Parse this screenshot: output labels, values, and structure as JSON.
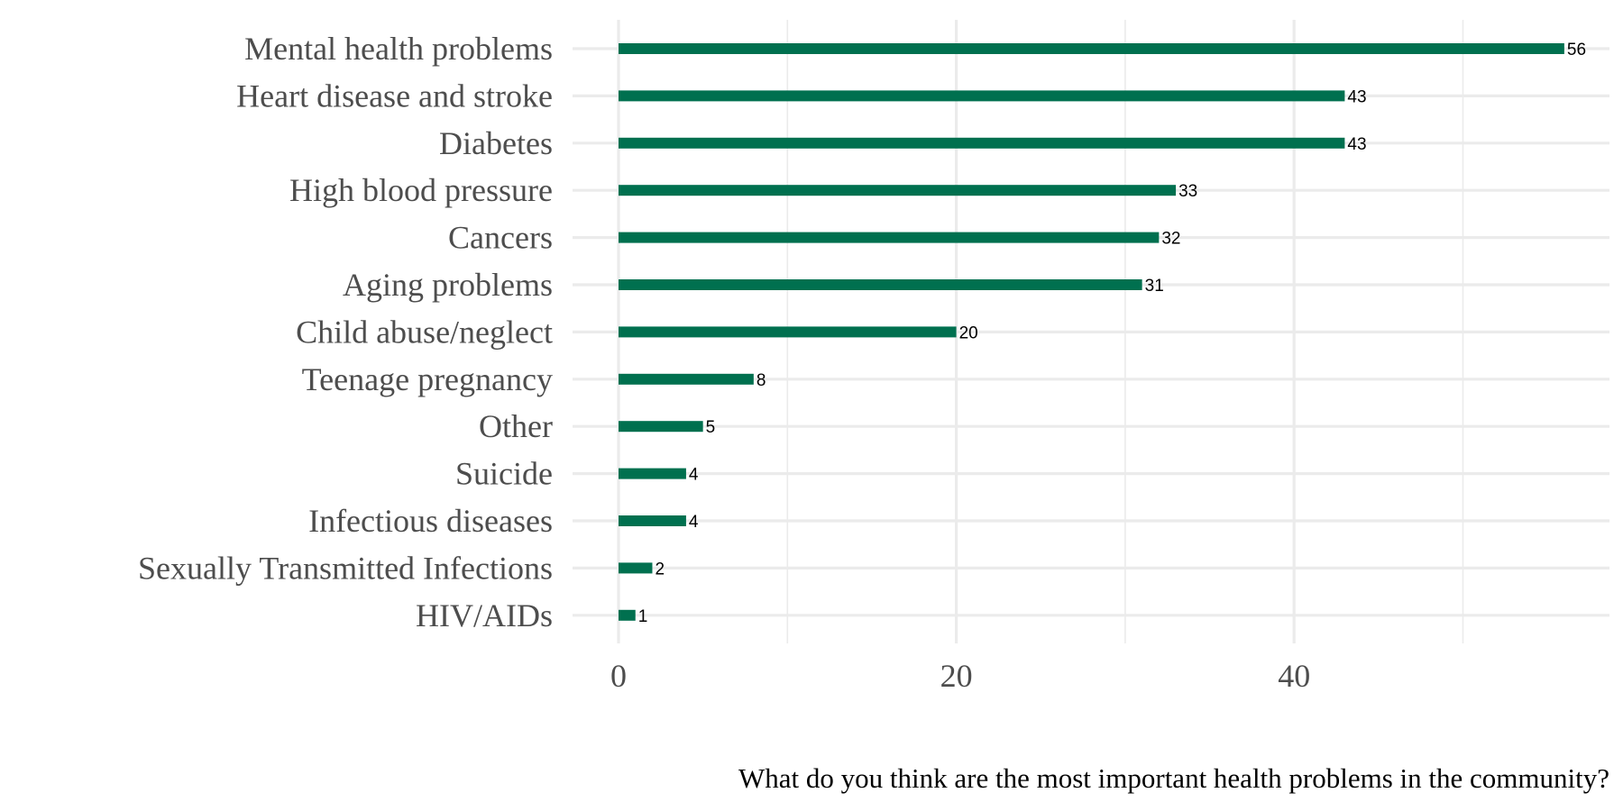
{
  "chart_data": {
    "type": "bar",
    "orientation": "horizontal",
    "categories": [
      "Mental health problems",
      "Heart disease and stroke",
      "Diabetes",
      "High blood pressure",
      "Cancers",
      "Aging problems",
      "Child abuse/neglect",
      "Teenage pregnancy",
      "Other",
      "Suicide",
      "Infectious diseases",
      "Sexually Transmitted Infections",
      "HIV/AIDs"
    ],
    "values": [
      56,
      43,
      43,
      33,
      32,
      31,
      20,
      8,
      5,
      4,
      4,
      2,
      1
    ],
    "data_labels": [
      "56",
      "43",
      "43",
      "33",
      "32",
      "31",
      "20",
      "8",
      "5",
      "4",
      "4",
      "2",
      "1"
    ],
    "xticks": [
      0,
      20,
      40
    ],
    "xtick_labels": [
      "0",
      "20",
      "40"
    ],
    "xlim": [
      0,
      59
    ],
    "xlabel": "What do you think are the most important health problems in the community?",
    "ylabel": "",
    "grid": true,
    "bar_color": "#00704f",
    "grid_color": "#ebebeb"
  }
}
